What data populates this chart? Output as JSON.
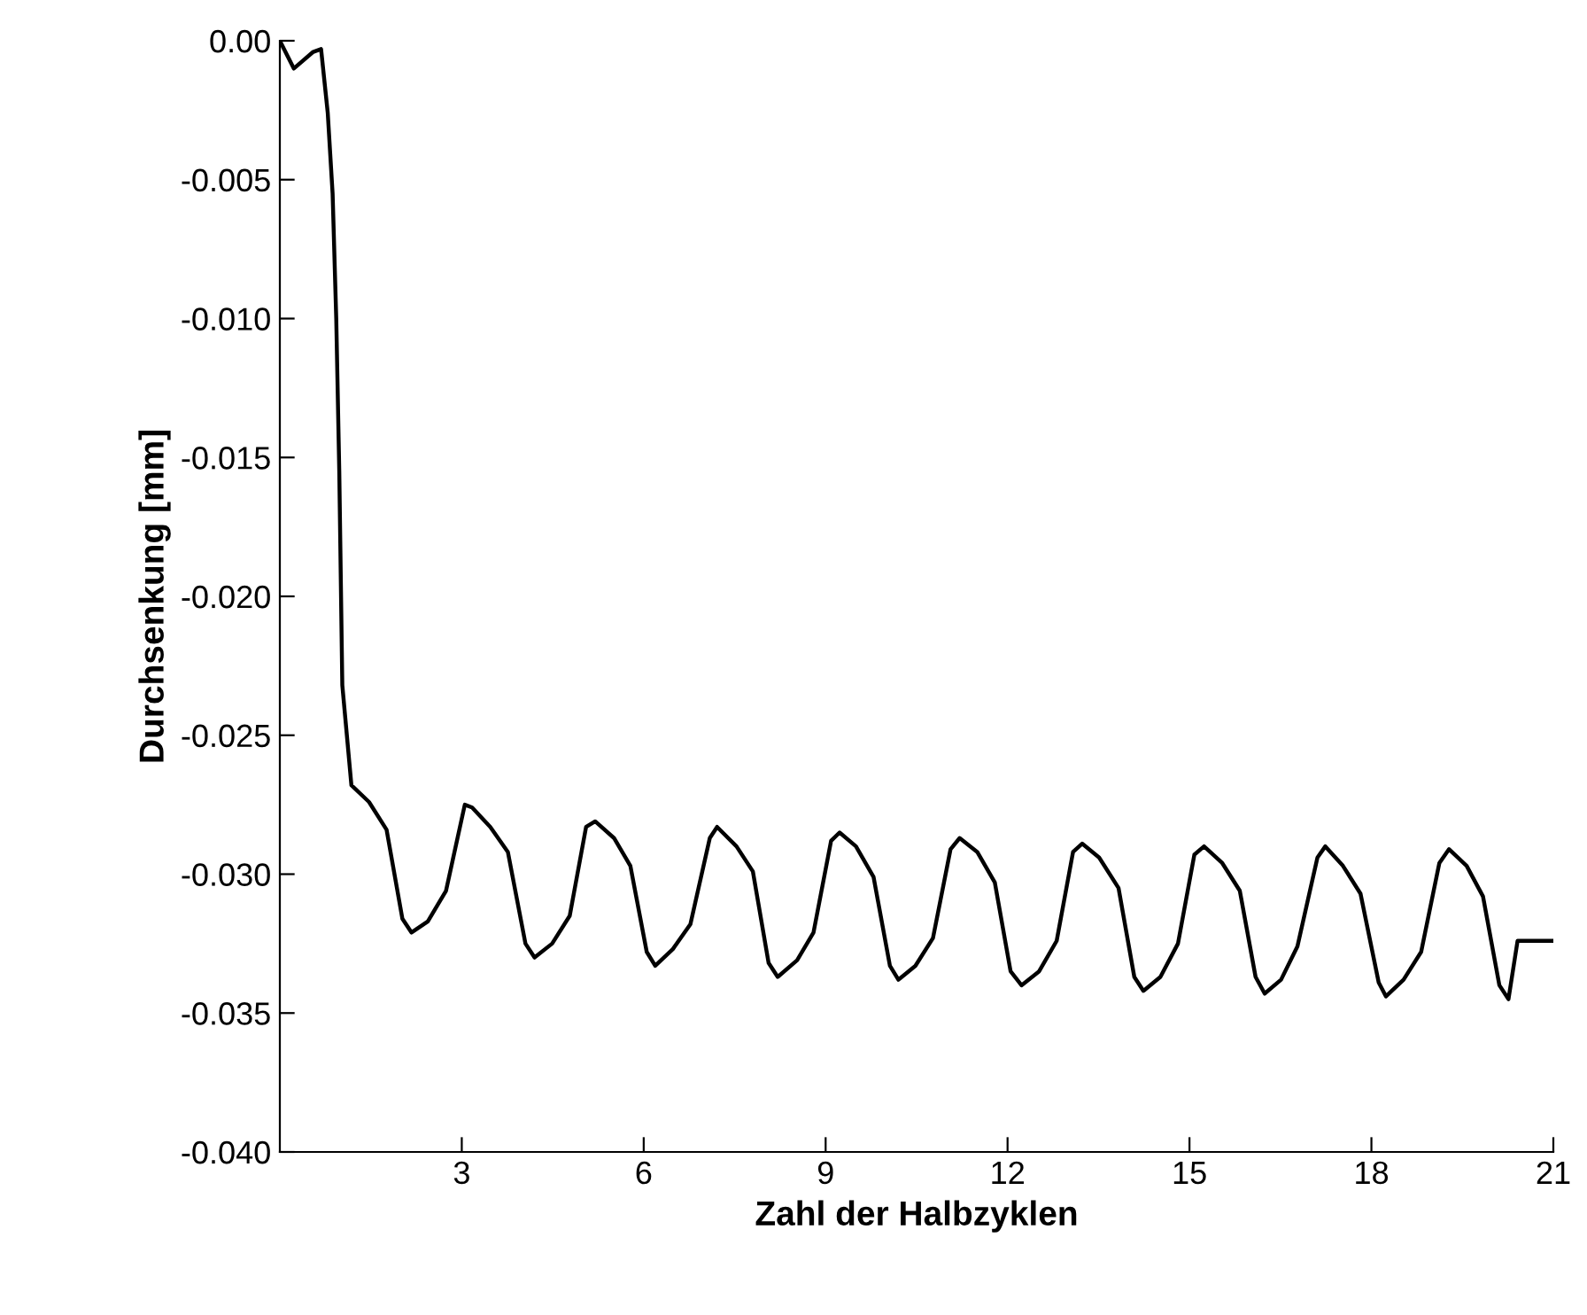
{
  "chart_data": {
    "type": "line",
    "xlabel": "Zahl der Halbzyklen",
    "ylabel": "Durchsenkung [mm]",
    "xlim": [
      0,
      21
    ],
    "xticks": [
      3,
      6,
      9,
      12,
      15,
      18,
      21
    ],
    "ylim": [
      -0.04,
      0.0
    ],
    "yticks": [
      {
        "value": 0.0,
        "label": "0.00"
      },
      {
        "value": -0.005,
        "label": "-0.005"
      },
      {
        "value": -0.01,
        "label": "-0.010"
      },
      {
        "value": -0.015,
        "label": "-0.015"
      },
      {
        "value": -0.02,
        "label": "-0.020"
      },
      {
        "value": -0.025,
        "label": "-0.025"
      },
      {
        "value": -0.03,
        "label": "-0.030"
      },
      {
        "value": -0.035,
        "label": "-0.035"
      },
      {
        "value": -0.04,
        "label": "-0.040"
      }
    ],
    "grid": false,
    "legend": false,
    "marker": "none",
    "line_style": "solid",
    "series": [
      {
        "color": "#000000",
        "x": [
          0,
          0.23,
          0.55,
          0.68,
          0.79,
          0.87,
          0.93,
          0.98,
          1.03,
          1.18,
          1.47,
          1.76,
          2.02,
          2.17,
          2.44,
          2.74,
          3.05,
          3.17,
          3.47,
          3.76,
          4.05,
          4.2,
          4.49,
          4.78,
          5.05,
          5.2,
          5.51,
          5.78,
          6.05,
          6.19,
          6.48,
          6.77,
          7.09,
          7.21,
          7.53,
          7.8,
          8.06,
          8.21,
          8.53,
          8.8,
          9.09,
          9.23,
          9.5,
          9.79,
          10.06,
          10.2,
          10.48,
          10.77,
          11.06,
          11.21,
          11.5,
          11.79,
          12.05,
          12.23,
          12.52,
          12.81,
          13.08,
          13.23,
          13.51,
          13.83,
          14.09,
          14.24,
          14.52,
          14.81,
          15.08,
          15.24,
          15.54,
          15.83,
          16.09,
          16.24,
          16.51,
          16.78,
          17.11,
          17.24,
          17.53,
          17.82,
          18.12,
          18.24,
          18.53,
          18.82,
          19.12,
          19.28,
          19.57,
          19.84,
          20.11,
          20.26,
          20.41,
          20.99
        ],
        "values": [
          0.0,
          -0.001,
          -0.0004,
          -0.0003,
          -0.0026,
          -0.0055,
          -0.01,
          -0.0155,
          -0.0232,
          -0.0268,
          -0.0274,
          -0.0284,
          -0.0316,
          -0.0321,
          -0.0317,
          -0.0306,
          -0.0275,
          -0.0276,
          -0.0283,
          -0.0292,
          -0.0325,
          -0.033,
          -0.0325,
          -0.0315,
          -0.0283,
          -0.0281,
          -0.0287,
          -0.0297,
          -0.0328,
          -0.0333,
          -0.0327,
          -0.0318,
          -0.0287,
          -0.0283,
          -0.029,
          -0.0299,
          -0.0332,
          -0.0337,
          -0.0331,
          -0.0321,
          -0.0288,
          -0.0285,
          -0.029,
          -0.0301,
          -0.0333,
          -0.0338,
          -0.0333,
          -0.0323,
          -0.0291,
          -0.0287,
          -0.0292,
          -0.0303,
          -0.0335,
          -0.034,
          -0.0335,
          -0.0324,
          -0.0292,
          -0.0289,
          -0.0294,
          -0.0305,
          -0.0337,
          -0.0342,
          -0.0337,
          -0.0325,
          -0.0293,
          -0.029,
          -0.0296,
          -0.0306,
          -0.0337,
          -0.0343,
          -0.0338,
          -0.0326,
          -0.0294,
          -0.029,
          -0.0297,
          -0.0307,
          -0.0339,
          -0.0344,
          -0.0338,
          -0.0328,
          -0.0296,
          -0.0291,
          -0.0297,
          -0.0308,
          -0.034,
          -0.0345,
          -0.0324,
          -0.0324
        ]
      }
    ]
  }
}
